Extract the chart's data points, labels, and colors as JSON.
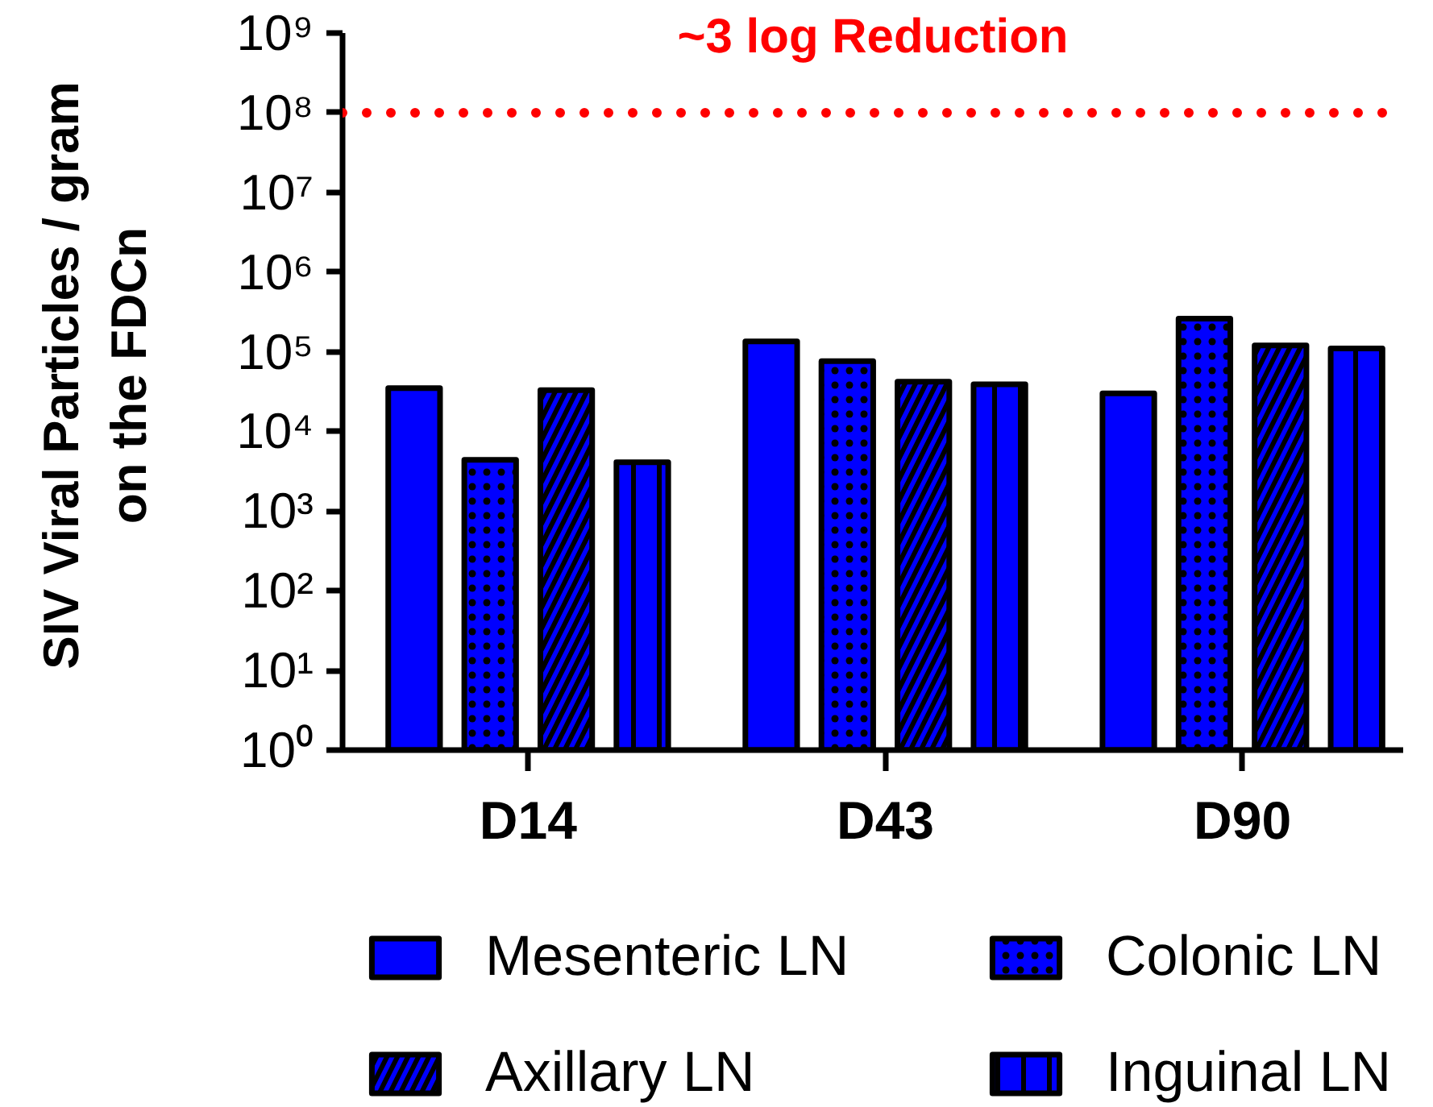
{
  "chart_data": {
    "type": "bar",
    "ylabel": "SIV Viral Particles / gram\non the FDCn",
    "categories": [
      "D14",
      "D43",
      "D90"
    ],
    "series": [
      {
        "name": "Mesenteric LN",
        "color": "#0000ff",
        "values": [
          35000,
          135000,
          30000
        ]
      },
      {
        "name": "Colonic LN",
        "color": "#0000ff",
        "values": [
          4400,
          76000,
          260000
        ]
      },
      {
        "name": "Axillary LN",
        "color": "#0000ff",
        "values": [
          33000,
          42000,
          120000
        ]
      },
      {
        "name": "Inguinal LN",
        "color": "#0000ff",
        "values": [
          4100,
          39000,
          110000
        ]
      }
    ],
    "log": true,
    "ylim": [
      1,
      1000000000
    ],
    "yticks": [
      {
        "value": 1,
        "label": "10⁰"
      },
      {
        "value": 10,
        "label": "10¹"
      },
      {
        "value": 100,
        "label": "10²"
      },
      {
        "value": 1000,
        "label": "10³"
      },
      {
        "value": 10000,
        "label": "10⁴"
      },
      {
        "value": 100000,
        "label": "10⁵"
      },
      {
        "value": 1000000,
        "label": "10⁶"
      },
      {
        "value": 10000000,
        "label": "10⁷"
      },
      {
        "value": 100000000,
        "label": "10⁸"
      },
      {
        "value": 1000000000,
        "label": "10⁹"
      }
    ],
    "ref_lines": [
      {
        "axis": "y",
        "value": 100000000,
        "label": "~3 log Reduction",
        "color": "#ff0000",
        "line_style": "dotted"
      }
    ],
    "legend": "bottom",
    "grid": false
  }
}
